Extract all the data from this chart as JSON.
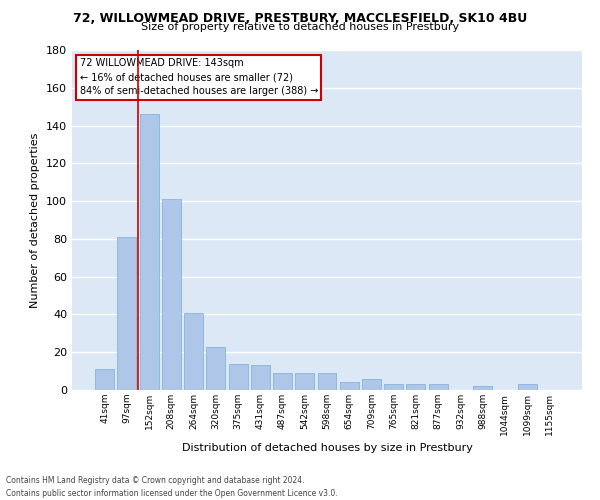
{
  "title": "72, WILLOWMEAD DRIVE, PRESTBURY, MACCLESFIELD, SK10 4BU",
  "subtitle": "Size of property relative to detached houses in Prestbury",
  "xlabel": "Distribution of detached houses by size in Prestbury",
  "ylabel": "Number of detached properties",
  "categories": [
    "41sqm",
    "97sqm",
    "152sqm",
    "208sqm",
    "264sqm",
    "320sqm",
    "375sqm",
    "431sqm",
    "487sqm",
    "542sqm",
    "598sqm",
    "654sqm",
    "709sqm",
    "765sqm",
    "821sqm",
    "877sqm",
    "932sqm",
    "988sqm",
    "1044sqm",
    "1099sqm",
    "1155sqm"
  ],
  "values": [
    11,
    81,
    146,
    101,
    41,
    23,
    14,
    13,
    9,
    9,
    9,
    4,
    6,
    3,
    3,
    3,
    0,
    2,
    0,
    3,
    0
  ],
  "bar_color": "#aec6e8",
  "bar_edge_color": "#7aadd4",
  "background_color": "#dce8f5",
  "grid_color": "#ffffff",
  "marker_line_color": "#cc0000",
  "annotation_line0": "72 WILLOWMEAD DRIVE: 143sqm",
  "annotation_line1": "← 16% of detached houses are smaller (72)",
  "annotation_line2": "84% of semi-detached houses are larger (388) →",
  "annotation_box_color": "#ffffff",
  "annotation_box_edge": "#cc0000",
  "ylim": [
    0,
    180
  ],
  "fig_bg": "#ffffff",
  "footer_line1": "Contains HM Land Registry data © Crown copyright and database right 2024.",
  "footer_line2": "Contains public sector information licensed under the Open Government Licence v3.0."
}
